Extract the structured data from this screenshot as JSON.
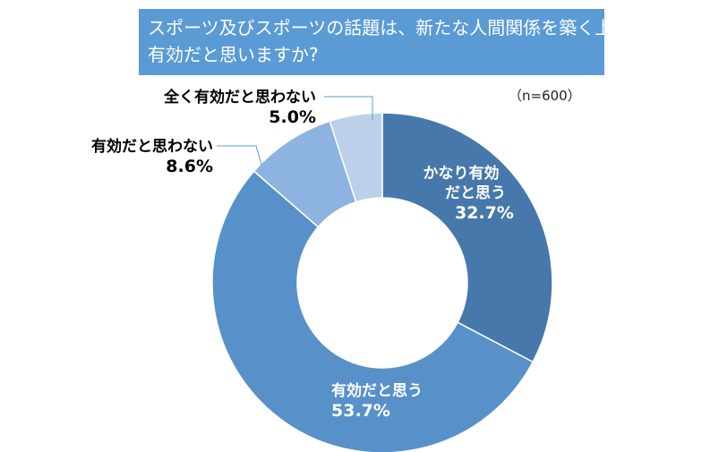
{
  "title_lines": [
    "スポーツ及びスポーツの話題は、新たな人間関係を築く上で",
    "有効だと思いますか?"
  ],
  "sample_note": "（n=600）",
  "chart_data": {
    "type": "pie",
    "donut": true,
    "title": "スポーツ及びスポーツの話題は、新たな人間関係を築く上で有効だと思いますか?",
    "n": 600,
    "slices": [
      {
        "label": "かなり有効だと思う",
        "label_lines": [
          "かなり有効",
          "だと思う"
        ],
        "value": 32.7,
        "display": "32.7%",
        "color": "#4678ab"
      },
      {
        "label": "有効だと思う",
        "label_lines": [
          "有効だと思う"
        ],
        "value": 53.7,
        "display": "53.7%",
        "color": "#5891c9"
      },
      {
        "label": "有効だと思わない",
        "label_lines": [
          "有効だと思わない"
        ],
        "value": 8.6,
        "display": "8.6%",
        "color": "#8db3e0"
      },
      {
        "label": "全く有効だと思わない",
        "label_lines": [
          "全く有効だと思わない"
        ],
        "value": 5.0,
        "display": "5.0%",
        "color": "#bcd0ea"
      }
    ],
    "legend": "none",
    "leader_color": "#5b9bd5"
  }
}
